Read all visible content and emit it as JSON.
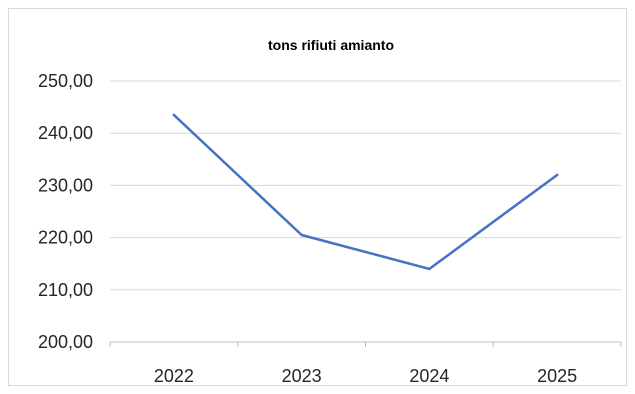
{
  "chart_data": {
    "type": "line",
    "title": "tons rifiuti amianto",
    "categories": [
      "2022",
      "2023",
      "2024",
      "2025"
    ],
    "series": [
      {
        "values": [
          243.5,
          220.5,
          214.0,
          232.0
        ],
        "color": "#4472c4"
      }
    ],
    "ylim": [
      200,
      250
    ],
    "yticks": [
      200,
      210,
      220,
      230,
      240,
      250
    ],
    "ytick_labels": [
      "200,00",
      "210,00",
      "220,00",
      "230,00",
      "240,00",
      "250,00"
    ],
    "grid": true,
    "legend": "none",
    "xlabel": "",
    "ylabel": ""
  }
}
